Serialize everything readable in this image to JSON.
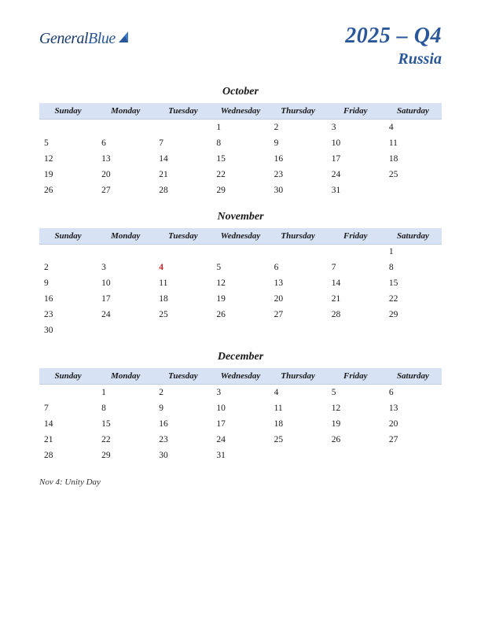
{
  "logo": {
    "general": "General",
    "blue": "Blue"
  },
  "header": {
    "year_quarter": "2025 – Q4",
    "country": "Russia"
  },
  "day_headers": [
    "Sunday",
    "Monday",
    "Tuesday",
    "Wednesday",
    "Thursday",
    "Friday",
    "Saturday"
  ],
  "months": [
    {
      "name": "October",
      "weeks": [
        [
          "",
          "",
          "",
          "1",
          "2",
          "3",
          "4"
        ],
        [
          "5",
          "6",
          "7",
          "8",
          "9",
          "10",
          "11"
        ],
        [
          "12",
          "13",
          "14",
          "15",
          "16",
          "17",
          "18"
        ],
        [
          "19",
          "20",
          "21",
          "22",
          "23",
          "24",
          "25"
        ],
        [
          "26",
          "27",
          "28",
          "29",
          "30",
          "31",
          ""
        ]
      ],
      "holidays": []
    },
    {
      "name": "November",
      "weeks": [
        [
          "",
          "",
          "",
          "",
          "",
          "",
          "1"
        ],
        [
          "2",
          "3",
          "4",
          "5",
          "6",
          "7",
          "8"
        ],
        [
          "9",
          "10",
          "11",
          "12",
          "13",
          "14",
          "15"
        ],
        [
          "16",
          "17",
          "18",
          "19",
          "20",
          "21",
          "22"
        ],
        [
          "23",
          "24",
          "25",
          "26",
          "27",
          "28",
          "29"
        ],
        [
          "30",
          "",
          "",
          "",
          "",
          "",
          ""
        ]
      ],
      "holidays": [
        {
          "week": 1,
          "col": 2
        }
      ]
    },
    {
      "name": "December",
      "weeks": [
        [
          "",
          "1",
          "2",
          "3",
          "4",
          "5",
          "6"
        ],
        [
          "7",
          "8",
          "9",
          "10",
          "11",
          "12",
          "13"
        ],
        [
          "14",
          "15",
          "16",
          "17",
          "18",
          "19",
          "20"
        ],
        [
          "21",
          "22",
          "23",
          "24",
          "25",
          "26",
          "27"
        ],
        [
          "28",
          "29",
          "30",
          "31",
          "",
          "",
          ""
        ]
      ],
      "holidays": []
    }
  ],
  "holiday_notes": [
    "Nov 4: Unity Day"
  ],
  "colors": {
    "header_bg": "#d7e2f4",
    "brand": "#2a5799",
    "holiday": "#d02020",
    "text": "#1a1a1a"
  }
}
